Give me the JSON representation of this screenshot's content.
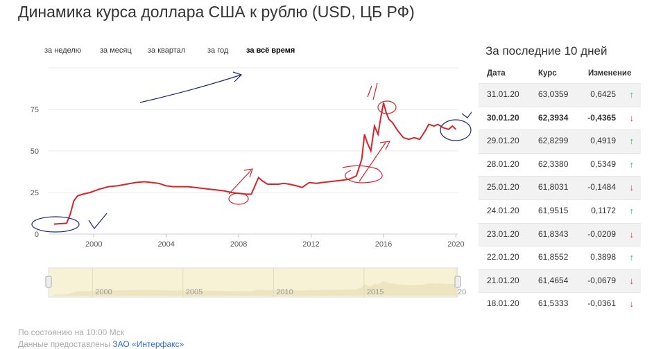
{
  "title": "Динамика курса доллара США к рублю (USD, ЦБ РФ)",
  "tabs": [
    {
      "label": "за неделю",
      "active": false
    },
    {
      "label": "за месяц",
      "active": false
    },
    {
      "label": "за квартал",
      "active": false
    },
    {
      "label": "за год",
      "active": false
    },
    {
      "label": "за всё время",
      "active": true
    }
  ],
  "chart_data": {
    "type": "line",
    "ylim": [
      0,
      100
    ],
    "yticks": [
      "0",
      "25",
      "50",
      "75"
    ],
    "xlim": [
      1997.5,
      2020.1
    ],
    "xticks": [
      "2000",
      "2004",
      "2008",
      "2012",
      "2016",
      "2020"
    ],
    "navigator_ticks": [
      "2000",
      "2005",
      "2010",
      "2015",
      "20"
    ],
    "line_color": "#d8232a",
    "series": [
      {
        "x": [
          1997.8,
          1998.5,
          1998.7,
          1998.9,
          1999.1,
          1999.4,
          1999.8,
          2000.3,
          2000.8,
          2001.3,
          2001.8,
          2002.3,
          2002.8,
          2003.2,
          2003.6,
          2004.0,
          2004.4,
          2004.8,
          2005.2,
          2005.6,
          2006.0,
          2006.4,
          2006.8,
          2007.2,
          2007.6,
          2008.0,
          2008.4,
          2008.7,
          2008.9,
          2009.1,
          2009.3,
          2009.6,
          2009.9,
          2010.2,
          2010.5,
          2010.8,
          2011.2,
          2011.5,
          2011.9,
          2012.3,
          2012.6,
          2013.0,
          2013.4,
          2013.8,
          2014.1,
          2014.5,
          2014.8,
          2014.95,
          2015.1,
          2015.3,
          2015.5,
          2015.7,
          2015.85,
          2016.0,
          2016.15,
          2016.3,
          2016.5,
          2016.8,
          2017.1,
          2017.4,
          2017.7,
          2018.0,
          2018.3,
          2018.5,
          2018.8,
          2019.0,
          2019.3,
          2019.6,
          2019.8,
          2020.0
        ],
        "y": [
          6,
          6.5,
          12,
          20,
          23,
          24,
          25,
          27,
          28.5,
          29,
          30,
          31,
          31.5,
          31,
          30.5,
          29,
          28.5,
          28.5,
          28.5,
          28,
          27.5,
          27,
          26.5,
          26,
          25,
          24.5,
          24,
          24,
          29,
          34,
          32,
          30,
          30,
          30,
          30.5,
          30,
          29,
          28,
          31,
          30.5,
          31,
          31.5,
          32,
          32.5,
          33,
          35,
          45,
          60,
          55,
          50,
          65,
          60,
          70,
          79,
          73,
          69,
          67,
          62,
          58,
          57,
          58,
          57,
          62,
          66,
          65,
          66,
          64,
          63,
          65,
          63
        ]
      }
    ]
  },
  "side_title": "За последние 10 дней",
  "table": {
    "headers": {
      "date": "Дата",
      "rate": "Курс",
      "change": "Изменение"
    },
    "rows": [
      {
        "date": "31.01.20",
        "rate": "63,0359",
        "change": "0,6425",
        "dir": "up",
        "arrow": "↑"
      },
      {
        "date": "30.01.20",
        "rate": "62,3934",
        "change": "-0,4365",
        "dir": "down",
        "arrow": "↓"
      },
      {
        "date": "29.01.20",
        "rate": "62,8299",
        "change": "0,4919",
        "dir": "up",
        "arrow": "↑"
      },
      {
        "date": "28.01.20",
        "rate": "62,3380",
        "change": "0,5349",
        "dir": "up",
        "arrow": "↑"
      },
      {
        "date": "25.01.20",
        "rate": "61,8031",
        "change": "-0,1484",
        "dir": "down",
        "arrow": "↓"
      },
      {
        "date": "24.01.20",
        "rate": "61,9515",
        "change": "0,1172",
        "dir": "up",
        "arrow": "↑"
      },
      {
        "date": "23.01.20",
        "rate": "61,8343",
        "change": "-0,0209",
        "dir": "down",
        "arrow": "↓"
      },
      {
        "date": "22.01.20",
        "rate": "61,8552",
        "change": "0,3898",
        "dir": "up",
        "arrow": "↑"
      },
      {
        "date": "21.01.20",
        "rate": "61,4654",
        "change": "-0,0679",
        "dir": "down",
        "arrow": "↓"
      },
      {
        "date": "18.01.20",
        "rate": "61,5333",
        "change": "-0,0361",
        "dir": "down",
        "arrow": "↓"
      }
    ]
  },
  "footer": {
    "status": "По состоянию на 10:00 Мск",
    "source_prefix": "Данные предоставлены",
    "source_link": "ЗАО «Интерфакс»"
  }
}
